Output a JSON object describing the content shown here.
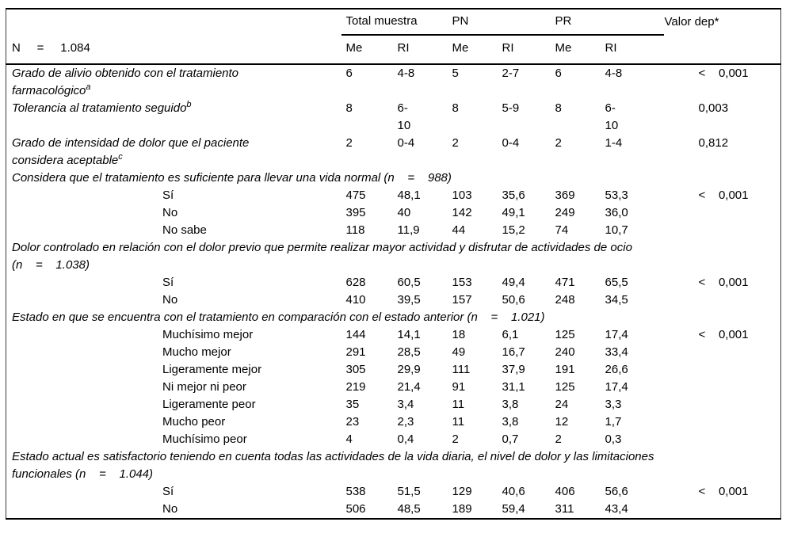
{
  "table": {
    "n_label": "N     =     1.084",
    "groups": [
      "Total muestra",
      "PN",
      "PR",
      "Valor dep*"
    ],
    "subheaders": [
      "Me",
      "RI",
      "Me",
      "RI",
      "Me",
      "RI"
    ],
    "rows": [
      {
        "type": "item",
        "label": "Grado de alivio obtenido con el tratamiento\nfarmacológico",
        "sup": "a",
        "cells": [
          "6",
          "4-8",
          "5",
          "2-7",
          "6",
          "4-8"
        ],
        "p": "<    0,001"
      },
      {
        "type": "item",
        "label": "Tolerancia al tratamiento seguido",
        "sup": "b",
        "cells": [
          "8",
          "6-\n10",
          "8",
          "5-9",
          "8",
          "6-\n10"
        ],
        "p": "0,003"
      },
      {
        "type": "item",
        "label": "Grado de intensidad de dolor que el paciente\nconsidera aceptable",
        "sup": "c",
        "cells": [
          "2",
          "0-4",
          "2",
          "0-4",
          "2",
          "1-4"
        ],
        "p": "0,812"
      },
      {
        "type": "section",
        "label": "Considera que el tratamiento es suficiente para llevar una vida normal (n    =    988)"
      },
      {
        "type": "sub",
        "label": "Sí",
        "cells": [
          "475",
          "48,1",
          "103",
          "35,6",
          "369",
          "53,3"
        ],
        "p": "<    0,001"
      },
      {
        "type": "sub",
        "label": "No",
        "cells": [
          "395",
          "40",
          "142",
          "49,1",
          "249",
          "36,0"
        ],
        "p": ""
      },
      {
        "type": "sub",
        "label": "No sabe",
        "cells": [
          "118",
          "11,9",
          "44",
          "15,2",
          "74",
          "10,7"
        ],
        "p": ""
      },
      {
        "type": "section",
        "label": "Dolor controlado en relación con el dolor previo que permite realizar mayor actividad y disfrutar de actividades de ocio\n(n    =    1.038)"
      },
      {
        "type": "sub",
        "label": "Sí",
        "cells": [
          "628",
          "60,5",
          "153",
          "49,4",
          "471",
          "65,5"
        ],
        "p": "<    0,001"
      },
      {
        "type": "sub",
        "label": "No",
        "cells": [
          "410",
          "39,5",
          "157",
          "50,6",
          "248",
          "34,5"
        ],
        "p": ""
      },
      {
        "type": "section",
        "label": "Estado en que se encuentra con el tratamiento en comparación con el estado anterior (n    =    1.021)"
      },
      {
        "type": "sub",
        "label": "Muchísimo mejor",
        "cells": [
          "144",
          "14,1",
          "18",
          "6,1",
          "125",
          "17,4"
        ],
        "p": "<    0,001"
      },
      {
        "type": "sub",
        "label": "Mucho mejor",
        "cells": [
          "291",
          "28,5",
          "49",
          "16,7",
          "240",
          "33,4"
        ],
        "p": ""
      },
      {
        "type": "sub",
        "label": "Ligeramente mejor",
        "cells": [
          "305",
          "29,9",
          "111",
          "37,9",
          "191",
          "26,6"
        ],
        "p": ""
      },
      {
        "type": "sub",
        "label": "Ni mejor ni peor",
        "cells": [
          "219",
          "21,4",
          "91",
          "31,1",
          "125",
          "17,4"
        ],
        "p": ""
      },
      {
        "type": "sub",
        "label": "Ligeramente peor",
        "cells": [
          "35",
          "3,4",
          "11",
          "3,8",
          "24",
          "3,3"
        ],
        "p": ""
      },
      {
        "type": "sub",
        "label": "Mucho peor",
        "cells": [
          "23",
          "2,3",
          "11",
          "3,8",
          "12",
          "1,7"
        ],
        "p": ""
      },
      {
        "type": "sub",
        "label": "Muchísimo peor",
        "cells": [
          "4",
          "0,4",
          "2",
          "0,7",
          "2",
          "0,3"
        ],
        "p": ""
      },
      {
        "type": "section",
        "label": "Estado actual es satisfactorio teniendo en cuenta todas las actividades de la vida diaria, el nivel de dolor y las limitaciones\nfuncionales (n    =    1.044)"
      },
      {
        "type": "sub",
        "label": "Sí",
        "cells": [
          "538",
          "51,5",
          "129",
          "40,6",
          "406",
          "56,6"
        ],
        "p": "<    0,001"
      },
      {
        "type": "sub",
        "label": "No",
        "cells": [
          "506",
          "48,5",
          "189",
          "59,4",
          "311",
          "43,4"
        ],
        "p": ""
      }
    ]
  }
}
